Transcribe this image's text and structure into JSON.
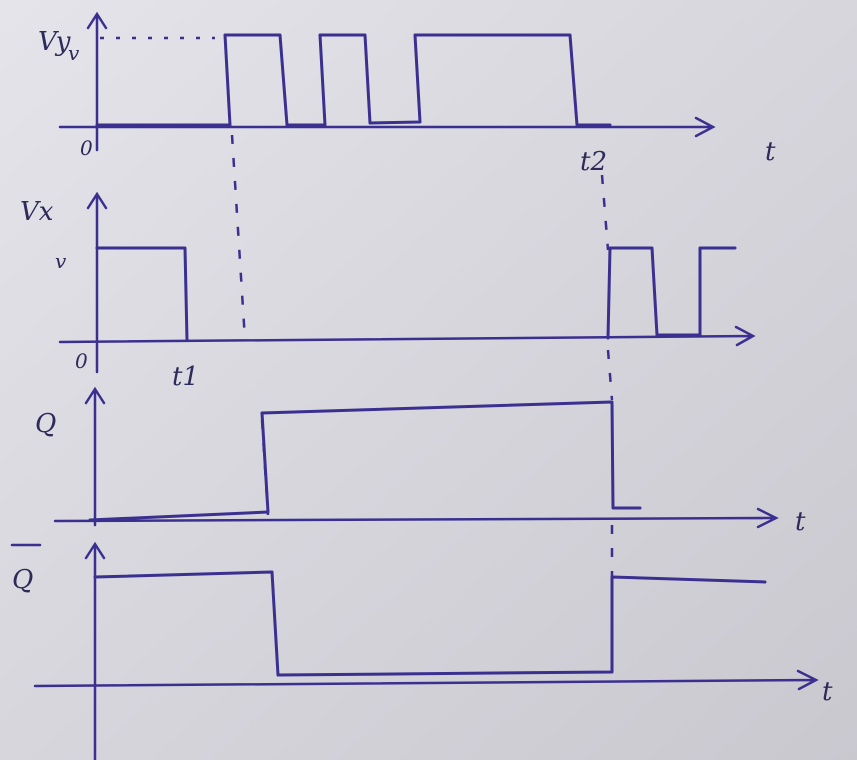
{
  "panels": [
    {
      "label": "Vy",
      "level": "v",
      "origin": "0",
      "axis": "t",
      "marker": "t2"
    },
    {
      "label": "Vx",
      "level": "v",
      "origin": "0",
      "marker": "t1"
    },
    {
      "label": "Q",
      "axis": "t"
    },
    {
      "label": "Q",
      "axis": "t"
    }
  ]
}
